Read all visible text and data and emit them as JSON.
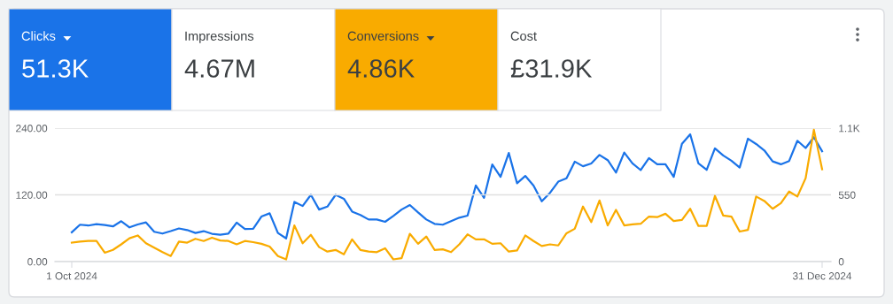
{
  "chart_data": [
    {
      "type": "other",
      "categories": [
        "Clicks",
        "Impressions",
        "Conversions",
        "Cost"
      ],
      "value_labels": [
        "51.3K",
        "4.67M",
        "4.86K",
        "£31.9K"
      ],
      "colors": [
        "#1a73e8",
        "#ffffff",
        "#f9ab00",
        "#ffffff"
      ]
    },
    {
      "type": "line",
      "categories": [
        "1 Oct 2024",
        null,
        null,
        null,
        null,
        null,
        null,
        null,
        null,
        null,
        null,
        null,
        null,
        null,
        null,
        null,
        null,
        null,
        null,
        null,
        null,
        null,
        null,
        null,
        null,
        null,
        null,
        null,
        null,
        null,
        null,
        null,
        null,
        null,
        null,
        null,
        null,
        null,
        null,
        null,
        null,
        null,
        null,
        null,
        null,
        null,
        null,
        null,
        null,
        null,
        null,
        null,
        null,
        null,
        null,
        null,
        null,
        null,
        null,
        null,
        null,
        null,
        null,
        null,
        null,
        null,
        null,
        null,
        null,
        null,
        null,
        null,
        null,
        null,
        null,
        null,
        null,
        null,
        null,
        null,
        null,
        null,
        null,
        null,
        null,
        null,
        null,
        null,
        null,
        null,
        null,
        "31 Dec 2024"
      ],
      "series": [
        {
          "color": "#1a73e8",
          "axis": "y2",
          "values": [
            241,
            304,
            297,
            309,
            302,
            290,
            333,
            282,
            306,
            323,
            246,
            231,
            251,
            273,
            260,
            236,
            251,
            229,
            222,
            231,
            321,
            268,
            270,
            371,
            398,
            236,
            191,
            492,
            458,
            550,
            429,
            453,
            550,
            518,
            412,
            384,
            347,
            347,
            328,
            376,
            429,
            466,
            405,
            347,
            311,
            304,
            333,
            362,
            379,
            627,
            526,
            801,
            699,
            895,
            646,
            706,
            627,
            497,
            567,
            659,
            686,
            824,
            786,
            809,
            879,
            836,
            734,
            899,
            809,
            754,
            853,
            802,
            802,
            698,
            971,
            1049,
            809,
            756,
            933,
            875,
            831,
            775,
            1013,
            969,
            916,
            826,
            802,
            829,
            996,
            936,
            1025,
            909
          ]
        },
        {
          "color": "#f9ab00",
          "axis": "y",
          "values": [
            34,
            36,
            37,
            37,
            16,
            21,
            31,
            42,
            47,
            33,
            25,
            17,
            10,
            36,
            34,
            41,
            37,
            43,
            38,
            37,
            31,
            37,
            35,
            32,
            27,
            10,
            4,
            65,
            33,
            48,
            26,
            18,
            21,
            13,
            40,
            21,
            18,
            17,
            24,
            4,
            6,
            50,
            32,
            45,
            21,
            22,
            17,
            31,
            49,
            40,
            40,
            32,
            33,
            18,
            20,
            47,
            37,
            28,
            31,
            29,
            51,
            59,
            99,
            71,
            110,
            65,
            93,
            65,
            67,
            68,
            81,
            80,
            86,
            73,
            75,
            95,
            64,
            64,
            118,
            83,
            81,
            54,
            57,
            117,
            109,
            95,
            105,
            126,
            117,
            150,
            237,
            166
          ]
        }
      ],
      "ylim": [
        0,
        240
      ],
      "yticks": [
        {
          "value": 0,
          "label": "0.00"
        },
        {
          "value": 120,
          "label": "120.00"
        },
        {
          "value": 240,
          "label": "240.00"
        }
      ],
      "y2lim": [
        0,
        1100
      ],
      "y2ticks": [
        0,
        550,
        {
          "value": 1100,
          "label": "1.1K"
        }
      ],
      "grid": "y",
      "marker": "none",
      "line_style": "solid"
    }
  ]
}
